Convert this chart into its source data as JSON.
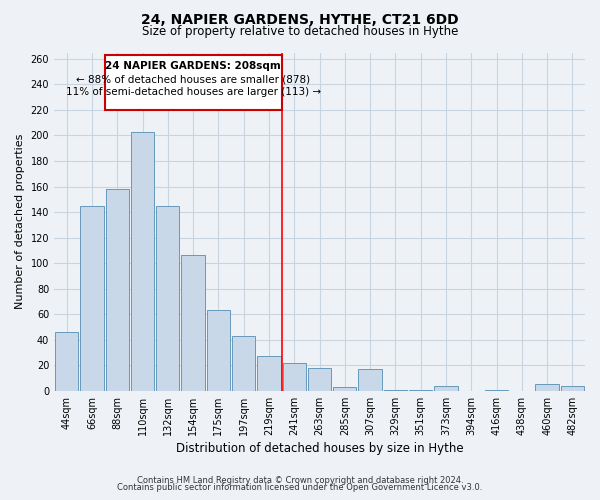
{
  "title": "24, NAPIER GARDENS, HYTHE, CT21 6DD",
  "subtitle": "Size of property relative to detached houses in Hythe",
  "xlabel": "Distribution of detached houses by size in Hythe",
  "ylabel": "Number of detached properties",
  "bar_labels": [
    "44sqm",
    "66sqm",
    "88sqm",
    "110sqm",
    "132sqm",
    "154sqm",
    "175sqm",
    "197sqm",
    "219sqm",
    "241sqm",
    "263sqm",
    "285sqm",
    "307sqm",
    "329sqm",
    "351sqm",
    "373sqm",
    "394sqm",
    "416sqm",
    "438sqm",
    "460sqm",
    "482sqm"
  ],
  "bar_values": [
    46,
    145,
    158,
    203,
    145,
    106,
    63,
    43,
    27,
    22,
    18,
    3,
    17,
    1,
    1,
    4,
    0,
    1,
    0,
    5,
    4
  ],
  "bar_color": "#c8d8e8",
  "bar_edge_color": "#6699bb",
  "reference_line_x": 8.5,
  "reference_line_label": "24 NAPIER GARDENS: 208sqm",
  "annotation_smaller": "← 88% of detached houses are smaller (878)",
  "annotation_larger": "11% of semi-detached houses are larger (113) →",
  "annotation_box_color": "#ffffff",
  "annotation_box_edge": "#cc0000",
  "ylim": [
    0,
    265
  ],
  "yticks": [
    0,
    20,
    40,
    60,
    80,
    100,
    120,
    140,
    160,
    180,
    200,
    220,
    240,
    260
  ],
  "footer1": "Contains HM Land Registry data © Crown copyright and database right 2024.",
  "footer2": "Contains public sector information licensed under the Open Government Licence v3.0.",
  "bg_color": "#eef2f7",
  "plot_bg_color": "#eef2f7",
  "grid_color": "#c8d4e0",
  "title_fontsize": 10,
  "subtitle_fontsize": 8.5,
  "tick_fontsize": 7,
  "ylabel_fontsize": 8,
  "xlabel_fontsize": 8.5
}
